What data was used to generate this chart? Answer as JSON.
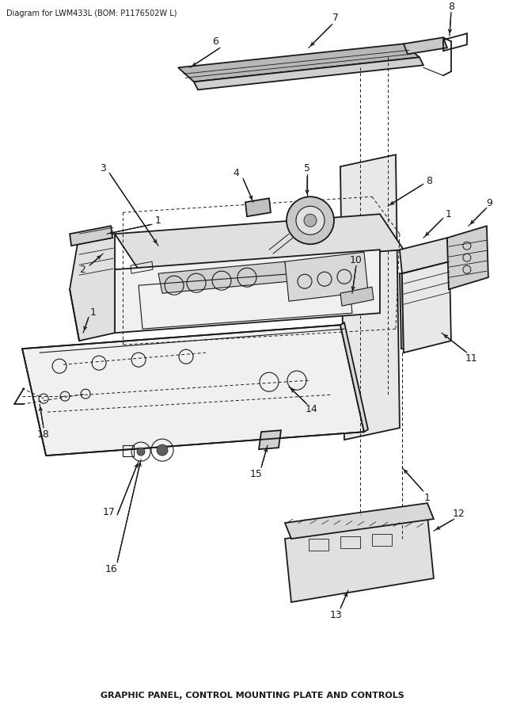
{
  "title": "Diagram for LWM433L (BOM: P1176502W L)",
  "caption": "GRAPHIC PANEL, CONTROL MOUNTING PLATE AND CONTROLS",
  "bg_color": "#ffffff",
  "title_fontsize": 7,
  "caption_fontsize": 8,
  "fig_width": 6.38,
  "fig_height": 9.0,
  "lc": "#1a1a1a",
  "gray_light": "#d8d8d8",
  "gray_mid": "#b0b0b0",
  "gray_dark": "#888888"
}
